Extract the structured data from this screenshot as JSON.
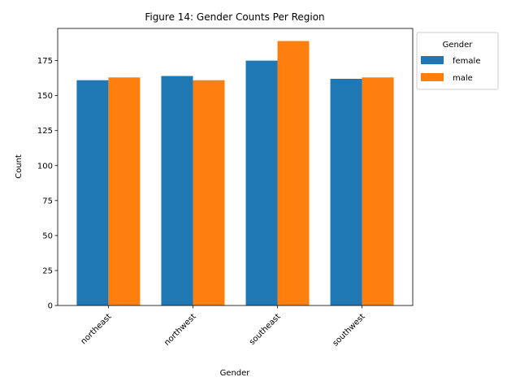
{
  "chart_data": {
    "type": "bar",
    "title": "Figure 14: Gender Counts Per Region",
    "xlabel": "Gender",
    "ylabel": "Count",
    "categories": [
      "northeast",
      "northwest",
      "southeast",
      "southwest"
    ],
    "series": [
      {
        "name": "female",
        "color": "#1f77b4",
        "values": [
          161,
          164,
          175,
          162
        ]
      },
      {
        "name": "male",
        "color": "#ff7f0e",
        "values": [
          163,
          161,
          189,
          163
        ]
      }
    ],
    "ylim": [
      0,
      198
    ],
    "yticks": [
      0,
      25,
      50,
      75,
      100,
      125,
      150,
      175
    ],
    "legend": {
      "title": "Gender",
      "placement": "outside upper right"
    },
    "grid": false
  }
}
